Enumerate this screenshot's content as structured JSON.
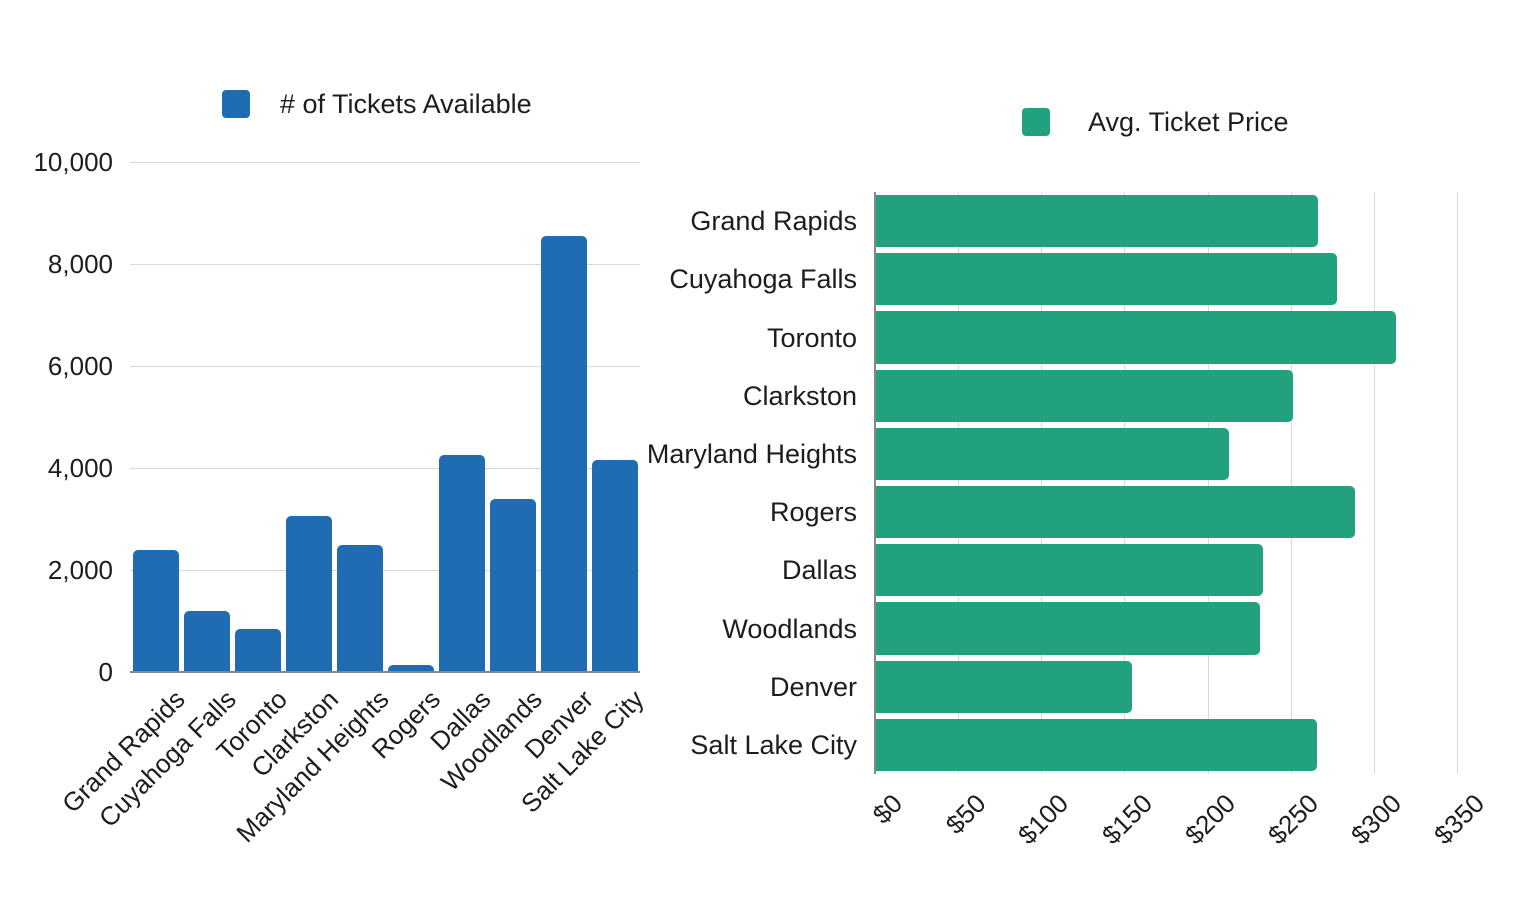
{
  "colors": {
    "background": "#ffffff",
    "blue_series": "#1F6CB3",
    "green_series": "#21A17E",
    "gridline": "#d8d8d8",
    "axis": "#878787",
    "text": "#1d1d1d"
  },
  "chart_data": [
    {
      "type": "bar",
      "orientation": "vertical",
      "legend": "# of Tickets Available",
      "legend_position": "top",
      "grid": true,
      "series_color": "#1F6CB3",
      "categories": [
        "Grand Rapids",
        "Cuyahoga Falls",
        "Toronto",
        "Clarkston",
        "Maryland Heights",
        "Rogers",
        "Dallas",
        "Woodlands",
        "Denver",
        "Salt Lake City"
      ],
      "values": [
        2400,
        1200,
        850,
        3050,
        2500,
        140,
        4250,
        3400,
        8550,
        4150
      ],
      "value_axis": {
        "min": 0,
        "max": 10000,
        "tick_values": [
          0,
          2000,
          4000,
          6000,
          8000,
          10000
        ],
        "tick_labels": [
          "0",
          "2,000",
          "4,000",
          "6,000",
          "8,000",
          "10,000"
        ]
      }
    },
    {
      "type": "bar",
      "orientation": "horizontal",
      "legend": "Avg. Ticket Price",
      "legend_position": "top",
      "grid": true,
      "series_color": "#21A17E",
      "categories": [
        "Grand Rapids",
        "Cuyahoga Falls",
        "Toronto",
        "Clarkston",
        "Maryland Heights",
        "Rogers",
        "Dallas",
        "Woodlands",
        "Denver",
        "Salt Lake City"
      ],
      "values": [
        266,
        277,
        313,
        251,
        212,
        288,
        233,
        231,
        154,
        265
      ],
      "value_axis": {
        "min": 0,
        "max": 350,
        "tick_values": [
          0,
          50,
          100,
          150,
          200,
          250,
          300,
          350
        ],
        "tick_labels": [
          "$0",
          "$50",
          "$100",
          "$150",
          "$200",
          "$250",
          "$300",
          "$350"
        ]
      }
    }
  ]
}
